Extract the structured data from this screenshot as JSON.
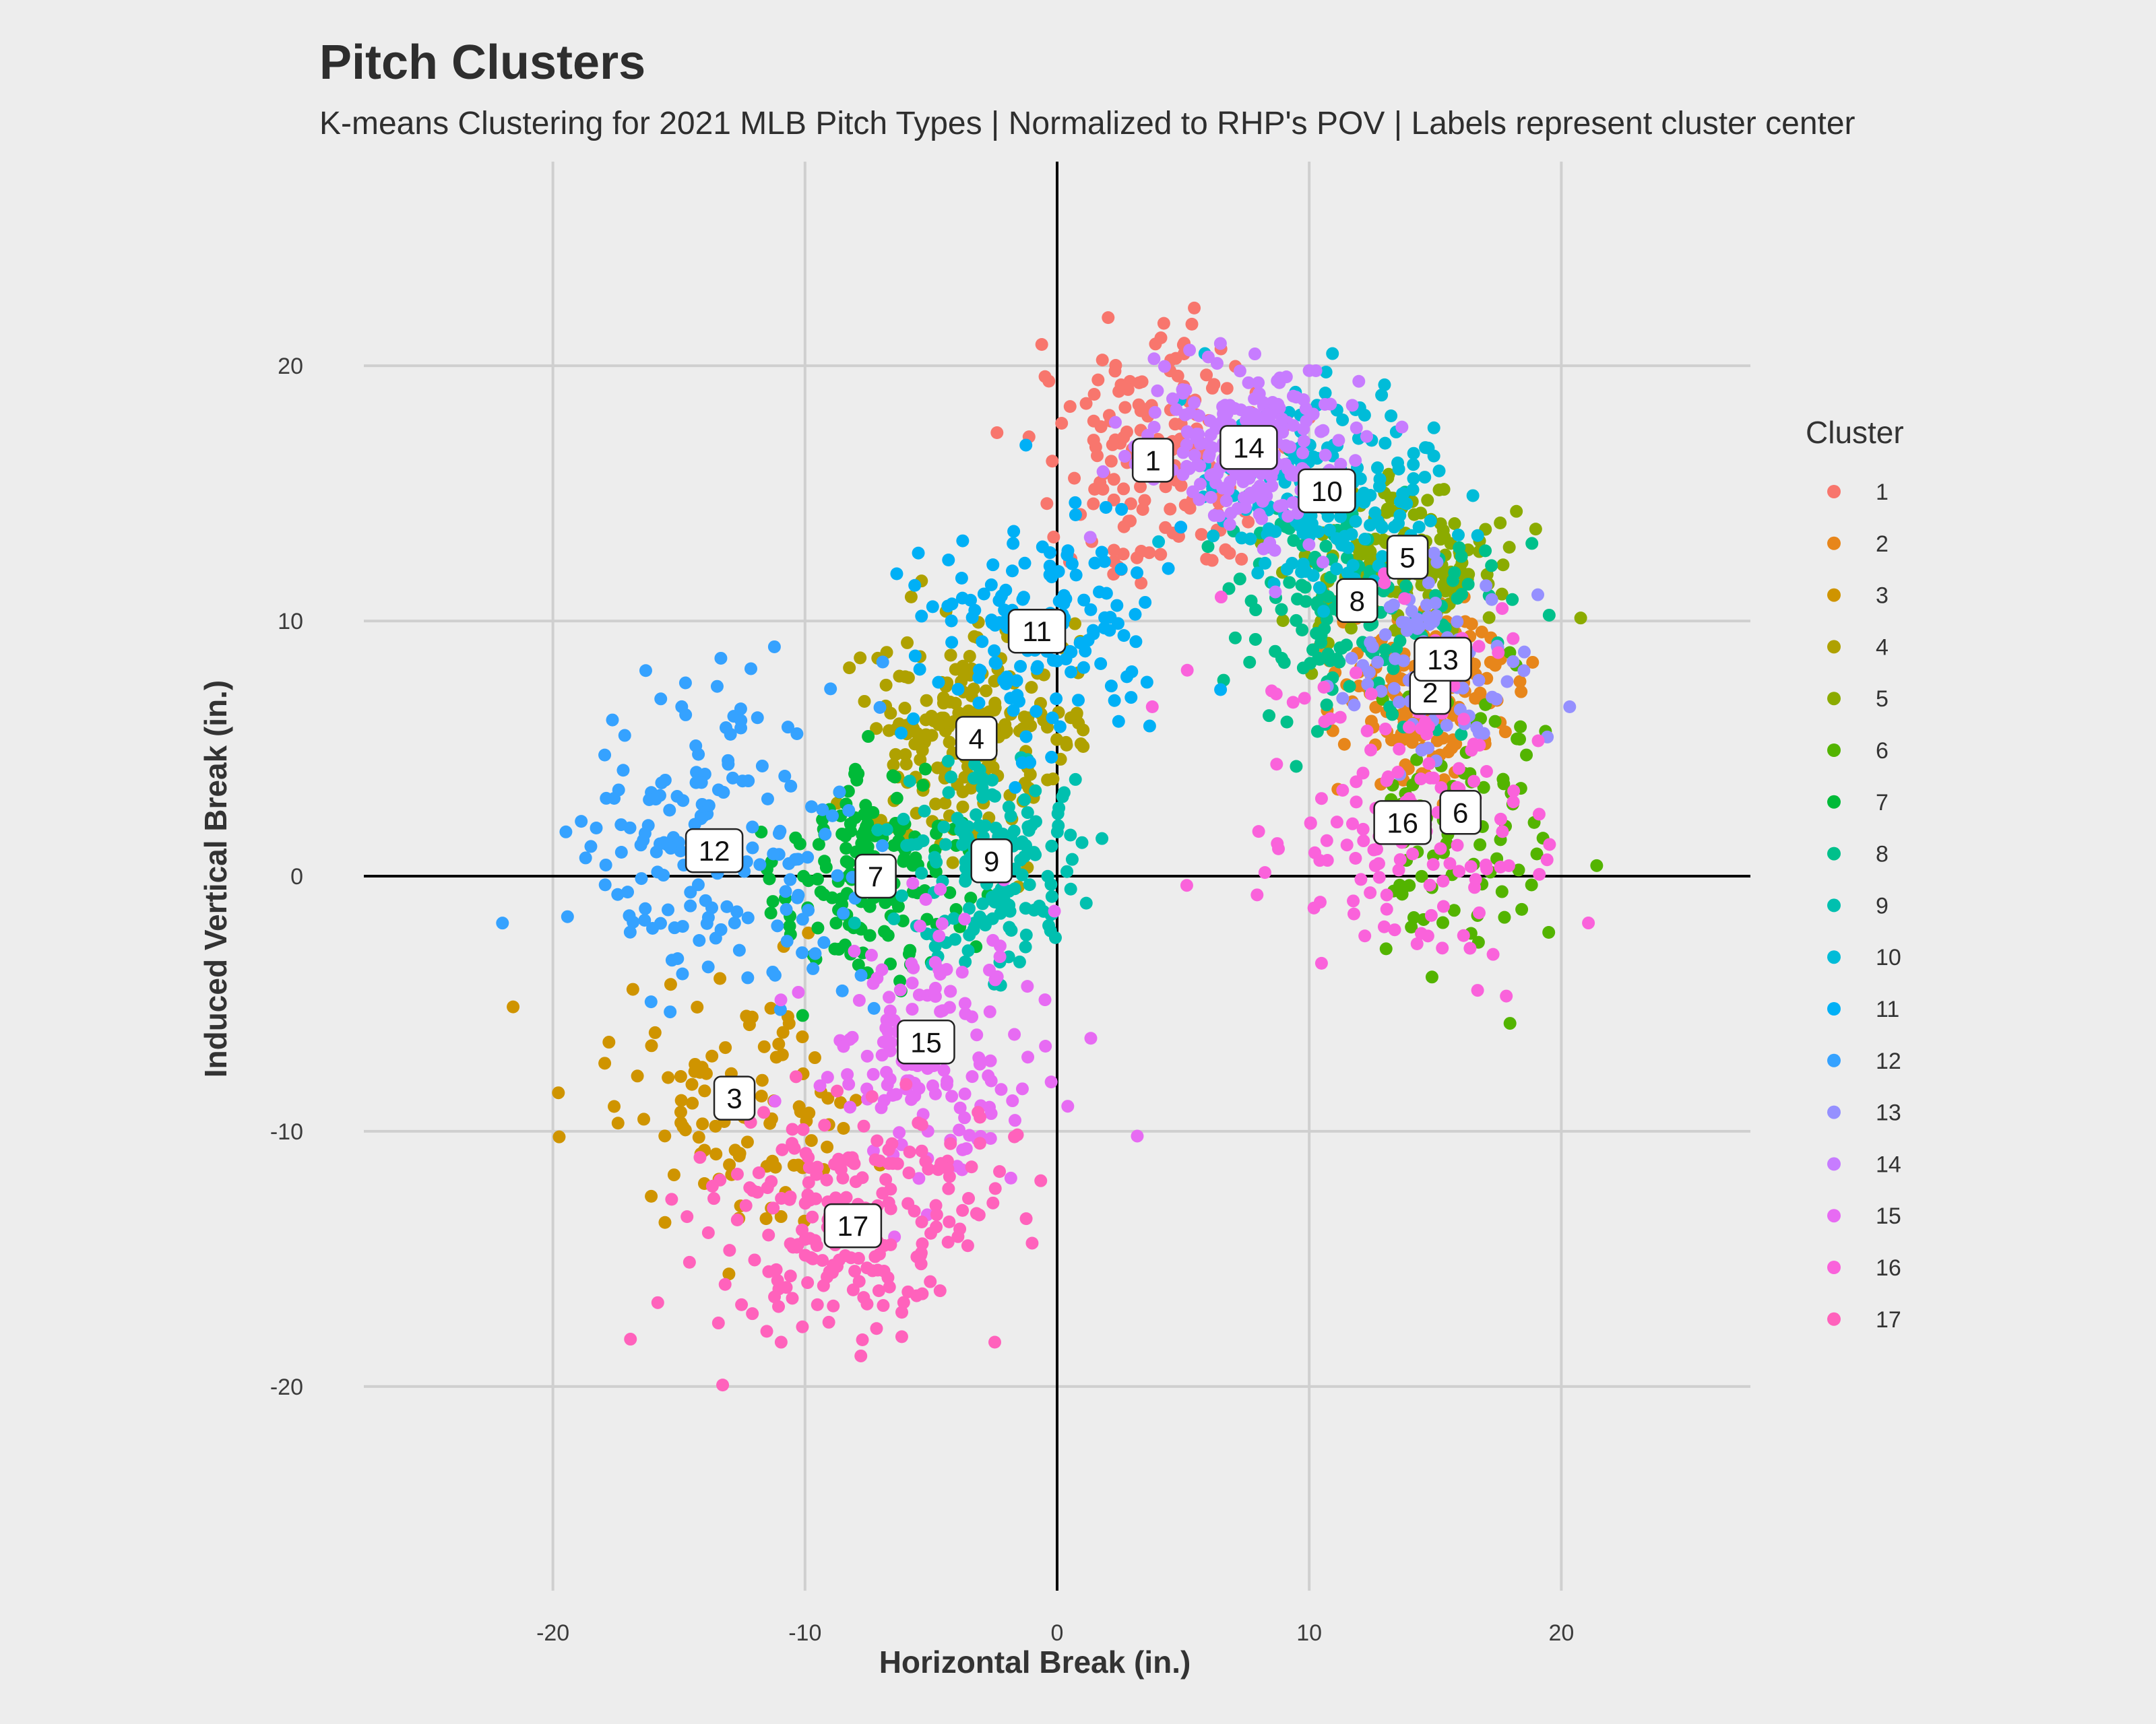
{
  "title": "Pitch Clusters",
  "subtitle": "K-means Clustering for 2021 MLB Pitch Types | Normalized to RHP's POV | Labels represent cluster center",
  "chart_data": {
    "type": "scatter",
    "xlabel": "Horizontal Break (in.)",
    "ylabel": "Induced Vertical Break (in.)",
    "xlim": [
      -27.5,
      27.5
    ],
    "ylim": [
      -28,
      28
    ],
    "x_ticks": [
      -20,
      -10,
      0,
      10,
      20
    ],
    "y_ticks": [
      -20,
      -10,
      0,
      10,
      20
    ],
    "grid": true,
    "reference_lines": {
      "x": 0,
      "y": 0
    },
    "legend": {
      "title": "Cluster",
      "position": "right"
    },
    "series": [
      {
        "name": "1",
        "color": "#F8766D",
        "center": [
          3.8,
          16.3
        ],
        "spread": [
          2.2,
          2.4
        ],
        "n": 180,
        "seed": 1
      },
      {
        "name": "2",
        "color": "#E7861B",
        "center": [
          14.8,
          7.2
        ],
        "spread": [
          1.8,
          2.0
        ],
        "n": 170,
        "seed": 2
      },
      {
        "name": "3",
        "color": "#CF9400",
        "center": [
          -12.8,
          -8.7
        ],
        "spread": [
          2.6,
          2.6
        ],
        "n": 110,
        "seed": 3
      },
      {
        "name": "4",
        "color": "#AFA100",
        "center": [
          -3.2,
          5.4
        ],
        "spread": [
          2.4,
          2.0
        ],
        "n": 200,
        "seed": 4
      },
      {
        "name": "5",
        "color": "#8BAB00",
        "center": [
          13.9,
          12.5
        ],
        "spread": [
          2.0,
          1.6
        ],
        "n": 170,
        "seed": 5
      },
      {
        "name": "6",
        "color": "#53B400",
        "center": [
          16.0,
          2.5
        ],
        "spread": [
          2.0,
          3.5
        ],
        "n": 90,
        "seed": 6
      },
      {
        "name": "7",
        "color": "#00BA38",
        "center": [
          -7.2,
          0.0
        ],
        "spread": [
          1.9,
          2.0
        ],
        "n": 160,
        "seed": 7
      },
      {
        "name": "8",
        "color": "#00C08B",
        "center": [
          11.9,
          10.8
        ],
        "spread": [
          2.6,
          2.4
        ],
        "n": 160,
        "seed": 8
      },
      {
        "name": "9",
        "color": "#00C0AF",
        "center": [
          -2.6,
          0.6
        ],
        "spread": [
          2.0,
          2.0
        ],
        "n": 170,
        "seed": 9
      },
      {
        "name": "10",
        "color": "#00BCD8",
        "center": [
          10.7,
          15.1
        ],
        "spread": [
          2.3,
          1.9
        ],
        "n": 200,
        "seed": 10
      },
      {
        "name": "11",
        "color": "#00B0F6",
        "center": [
          -0.8,
          9.6
        ],
        "spread": [
          2.4,
          2.4
        ],
        "n": 150,
        "seed": 11
      },
      {
        "name": "12",
        "color": "#35A2FF",
        "center": [
          -13.6,
          1.0
        ],
        "spread": [
          2.9,
          3.3
        ],
        "n": 170,
        "seed": 12
      },
      {
        "name": "13",
        "color": "#9590FF",
        "center": [
          15.3,
          8.5
        ],
        "spread": [
          1.6,
          1.6
        ],
        "n": 110,
        "seed": 13
      },
      {
        "name": "14",
        "color": "#C77CFF",
        "center": [
          7.6,
          16.8
        ],
        "spread": [
          1.9,
          1.7
        ],
        "n": 220,
        "seed": 14
      },
      {
        "name": "15",
        "color": "#E76BF3",
        "center": [
          -5.2,
          -6.5
        ],
        "spread": [
          2.5,
          2.6
        ],
        "n": 160,
        "seed": 15
      },
      {
        "name": "16",
        "color": "#FA62DB",
        "center": [
          13.7,
          2.1
        ],
        "spread": [
          2.9,
          3.5
        ],
        "n": 150,
        "seed": 16
      },
      {
        "name": "17",
        "color": "#FF62BC",
        "center": [
          -8.1,
          -13.7
        ],
        "spread": [
          2.8,
          2.4
        ],
        "n": 220,
        "seed": 17
      }
    ]
  }
}
